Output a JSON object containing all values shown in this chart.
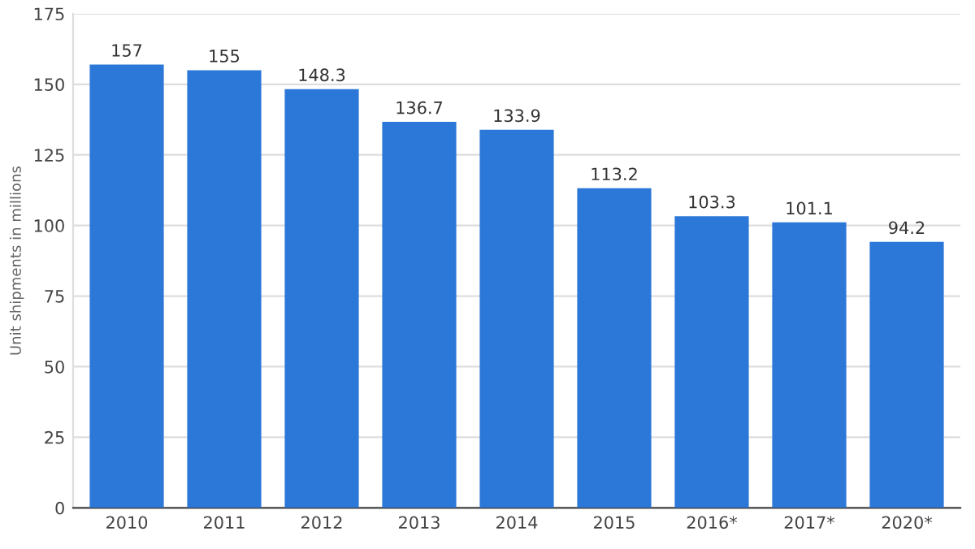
{
  "chart_data": {
    "type": "bar",
    "ylabel": "Unit shipments in millions",
    "categories": [
      "2010",
      "2011",
      "2012",
      "2013",
      "2014",
      "2015",
      "2016*",
      "2017*",
      "2020*"
    ],
    "values": [
      157,
      155,
      148.3,
      136.7,
      133.9,
      113.2,
      103.3,
      101.1,
      94.2
    ],
    "color": "#2c78d8",
    "ylim": [
      0,
      175
    ],
    "yticks": [
      0,
      25,
      50,
      75,
      100,
      125,
      150,
      175
    ],
    "grid": "y",
    "data_labels": true
  }
}
